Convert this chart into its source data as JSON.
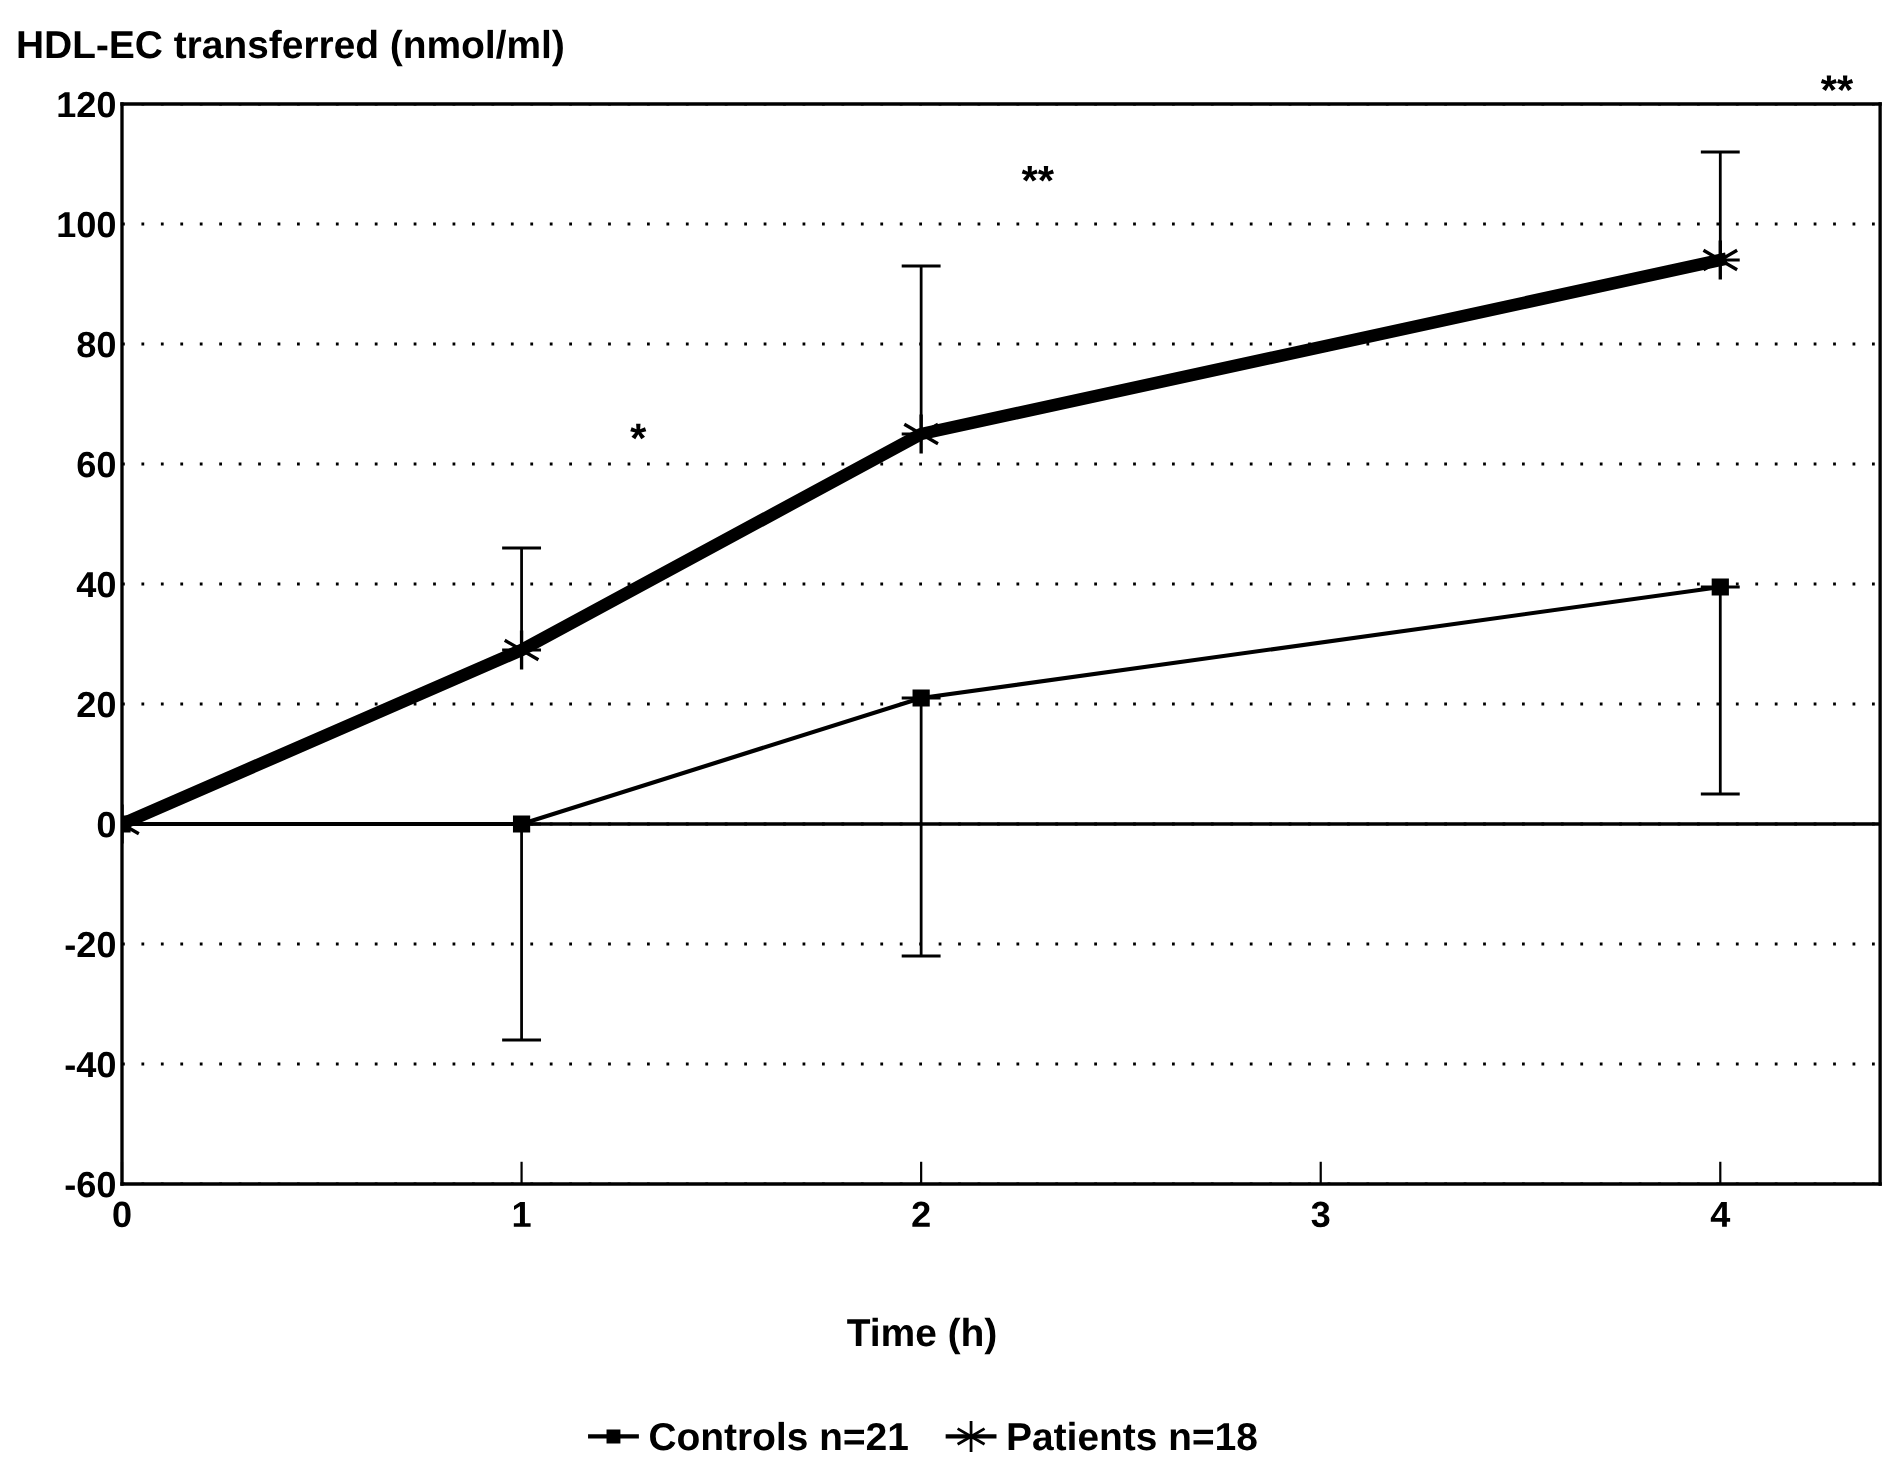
{
  "chart_data": {
    "type": "line",
    "ylabel": "HDL-EC transferred (nmol/ml)",
    "xlabel": "Time (h)",
    "x": [
      0,
      1,
      2,
      4
    ],
    "series": [
      {
        "name": "Controls n=21",
        "color": "#000000",
        "marker": "square",
        "values": [
          0,
          0,
          21,
          39.5
        ],
        "errors": [
          null,
          [
            -36,
            0
          ],
          [
            -22,
            21
          ],
          [
            5,
            39.5
          ]
        ]
      },
      {
        "name": "Patients n=18",
        "color": "#000000",
        "marker": "cross",
        "values": [
          0,
          29,
          65,
          94
        ],
        "errors": [
          null,
          [
            29,
            46
          ],
          [
            65,
            93
          ],
          [
            94,
            112
          ]
        ]
      }
    ],
    "xlim": [
      0,
      4.4
    ],
    "xticks": [
      0,
      1,
      2,
      3,
      4
    ],
    "ylim": [
      -60,
      120
    ],
    "yticks": [
      -60,
      -40,
      -20,
      0,
      20,
      40,
      60,
      80,
      100,
      120
    ],
    "grid": "y",
    "legend": "bottom",
    "line_style": "solid",
    "ref_lines": [
      {
        "axis": "y",
        "value": 0
      }
    ],
    "annotations": [
      "*",
      "**",
      "**"
    ]
  }
}
